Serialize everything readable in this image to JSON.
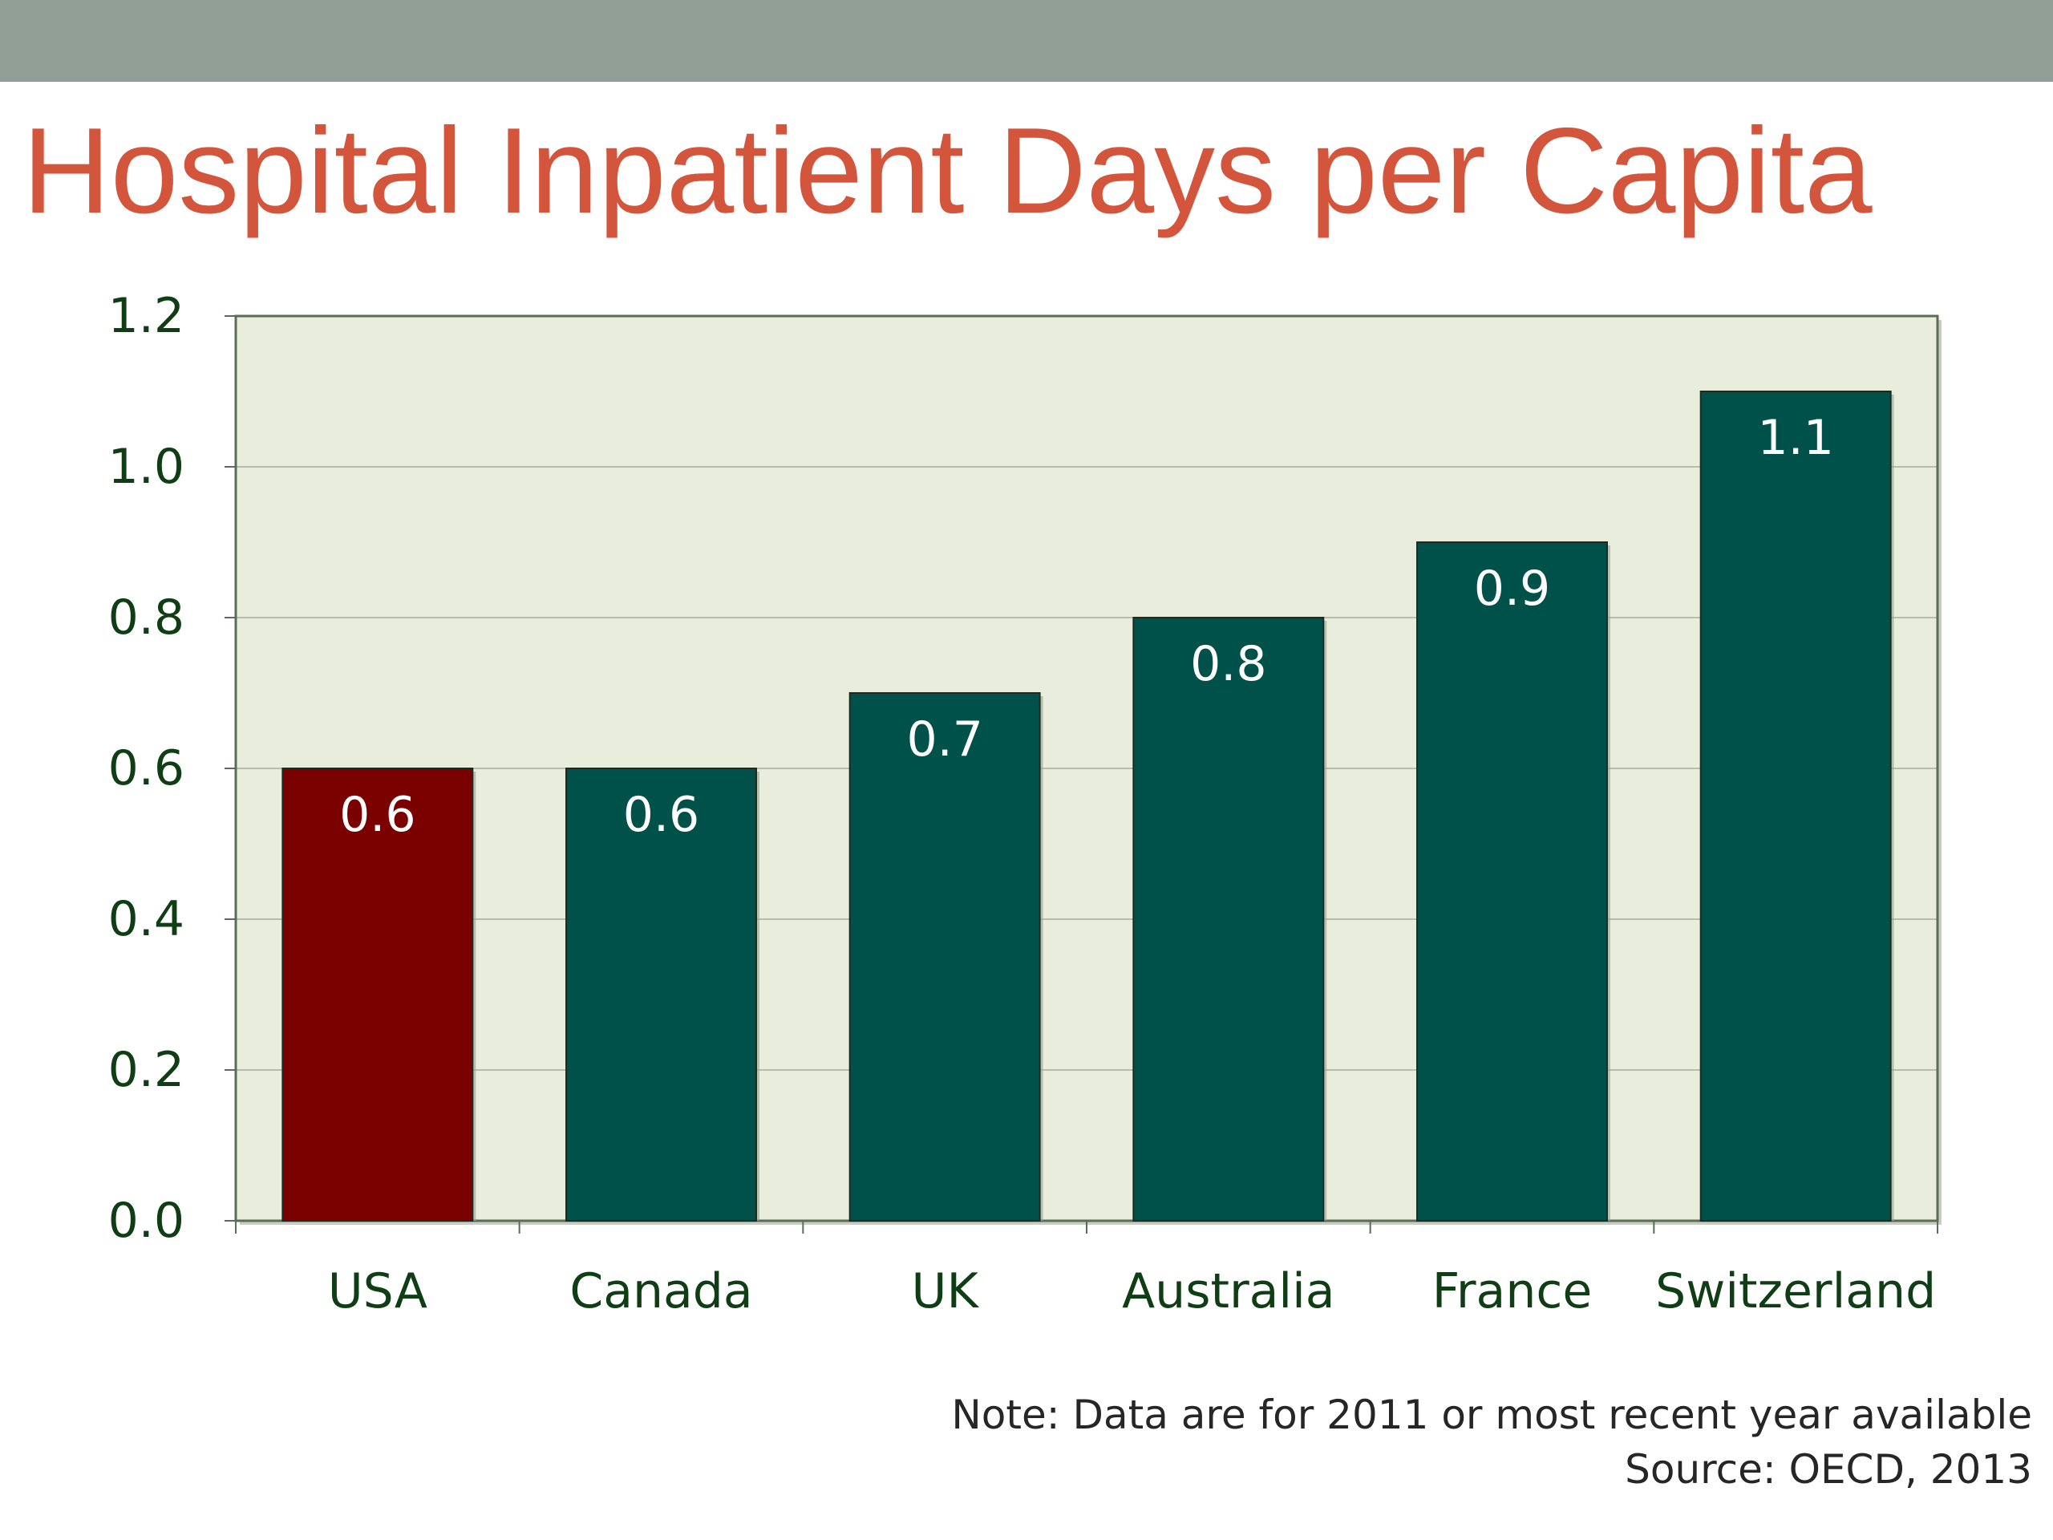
{
  "slide": {
    "band_color": "#929f97",
    "title": "Hospital Inpatient Days per Capita",
    "title_color": "#d2553c",
    "note": "Note: Data are for 2011 or most recent year available",
    "source": "Source: OECD, 2013"
  },
  "chart_data": {
    "type": "bar",
    "title": "Hospital Inpatient Days per Capita",
    "xlabel": "",
    "ylabel": "",
    "categories": [
      "USA",
      "Canada",
      "UK",
      "Australia",
      "France",
      "Switzerland"
    ],
    "values": [
      0.6,
      0.6,
      0.7,
      0.8,
      0.9,
      1.1
    ],
    "data_labels": [
      "0.6",
      "0.6",
      "0.7",
      "0.8",
      "0.9",
      "1.1"
    ],
    "ylim": [
      0,
      1.2
    ],
    "yticks": [
      0.0,
      0.2,
      0.4,
      0.6,
      0.8,
      1.0,
      1.2
    ],
    "ytick_labels": [
      "0.0",
      "0.2",
      "0.4",
      "0.6",
      "0.8",
      "1.0",
      "1.2"
    ],
    "grid": true,
    "legend": "none",
    "colors": {
      "plot_background": "#e9eddc",
      "bar": "#00514a",
      "highlight_bar": "#7b0000",
      "highlight_category": "USA",
      "bar_label": "#ffffff",
      "axis_text": "#0f3d14",
      "gridline": "#b7bcac",
      "frame": "#5a6e56"
    }
  }
}
